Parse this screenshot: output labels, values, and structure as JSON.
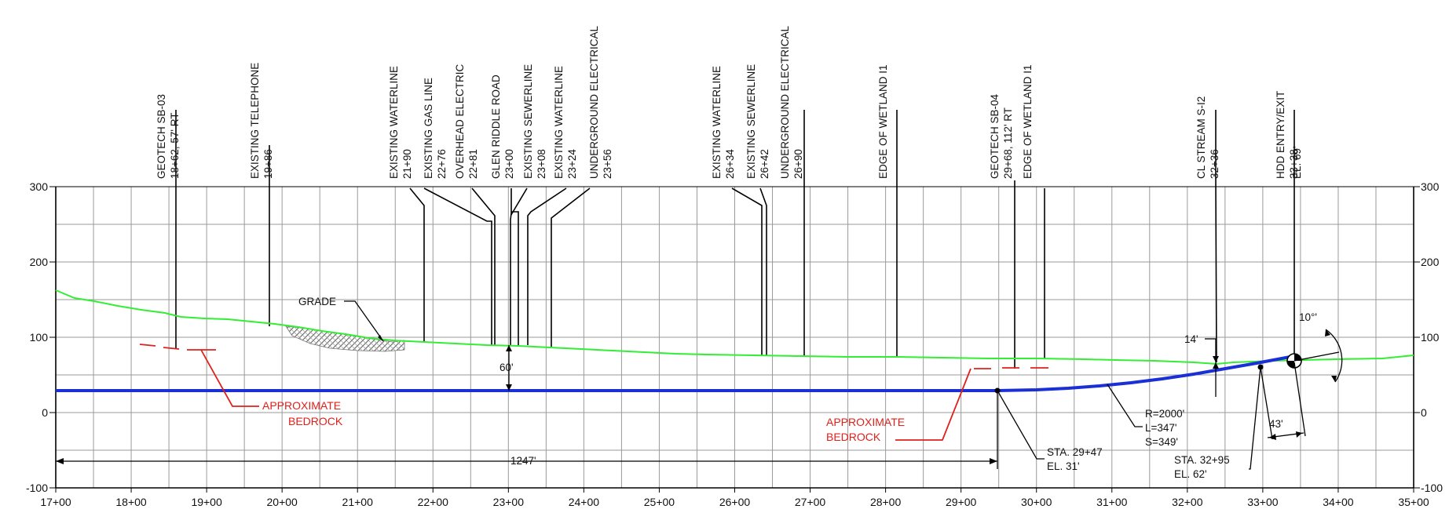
{
  "axes": {
    "x_ticks": [
      "17+00",
      "18+00",
      "19+00",
      "20+00",
      "21+00",
      "22+00",
      "23+00",
      "24+00",
      "25+00",
      "26+00",
      "27+00",
      "28+00",
      "29+00",
      "30+00",
      "31+00",
      "32+00",
      "33+00",
      "34+00",
      "35+00"
    ],
    "y_ticks": [
      "300",
      "200",
      "100",
      "0",
      "-100"
    ],
    "y_ticks_right": [
      "300",
      "200",
      "100",
      "0",
      "-100"
    ]
  },
  "callouts": [
    {
      "label": "GEOTECH SB-03",
      "detail": "18+62, 57' RT"
    },
    {
      "label": "EXISTING TELEPHONE",
      "detail": "19+86"
    },
    {
      "label": "EXISTING WATERLINE",
      "detail": "21+90"
    },
    {
      "label": "EXISTING GAS LINE",
      "detail": "22+76"
    },
    {
      "label": "OVERHEAD ELECTRIC",
      "detail": "22+81"
    },
    {
      "label": "GLEN RIDDLE ROAD",
      "detail": "23+00"
    },
    {
      "label": "EXISTING SEWERLINE",
      "detail": "23+08"
    },
    {
      "label": "EXISTING WATERLINE",
      "detail": "23+24"
    },
    {
      "label": "UNDERGROUND ELECTRICAL",
      "detail": "23+56"
    },
    {
      "label": "EXISTING WATERLINE",
      "detail": "26+34"
    },
    {
      "label": "EXISTING SEWERLINE",
      "detail": "26+42"
    },
    {
      "label": "UNDERGROUND ELECTRICAL",
      "detail": "26+90"
    },
    {
      "label": "EDGE OF WETLAND I1",
      "detail": ""
    },
    {
      "label": "GEOTECH SB-04",
      "detail": "29+68, 112' RT"
    },
    {
      "label": "EDGE OF WETLAND I1",
      "detail": ""
    },
    {
      "label": "CL STREAM S-I2",
      "detail": "32+36"
    },
    {
      "label": "HDD ENTRY/EXIT",
      "detail": "33+38"
    },
    {
      "label": "EL. 69'",
      "detail": ""
    }
  ],
  "annotations": {
    "grade": "GRADE",
    "bedrock_left_1": "APPROXIMATE",
    "bedrock_left_2": "BEDROCK",
    "bedrock_right_1": "APPROXIMATE",
    "bedrock_right_2": "BEDROCK",
    "depth_60": "60'",
    "length_1247": "1247'",
    "sta_pc_1": "STA. 29+47",
    "sta_pc_2": "EL. 31'",
    "curve_r": "R=2000'",
    "curve_l": "L=347'",
    "curve_s": "S=349'",
    "sta_pt_1": "STA. 32+95",
    "sta_pt_2": "EL. 62'",
    "depth_14": "14'",
    "dist_43": "43'",
    "angle_10": "10°'"
  },
  "colors": {
    "grade_line": "#33ee33",
    "hdd_path": "#1a2fd6",
    "bedrock": "#e0201a",
    "grid": "#9a9a9a"
  }
}
